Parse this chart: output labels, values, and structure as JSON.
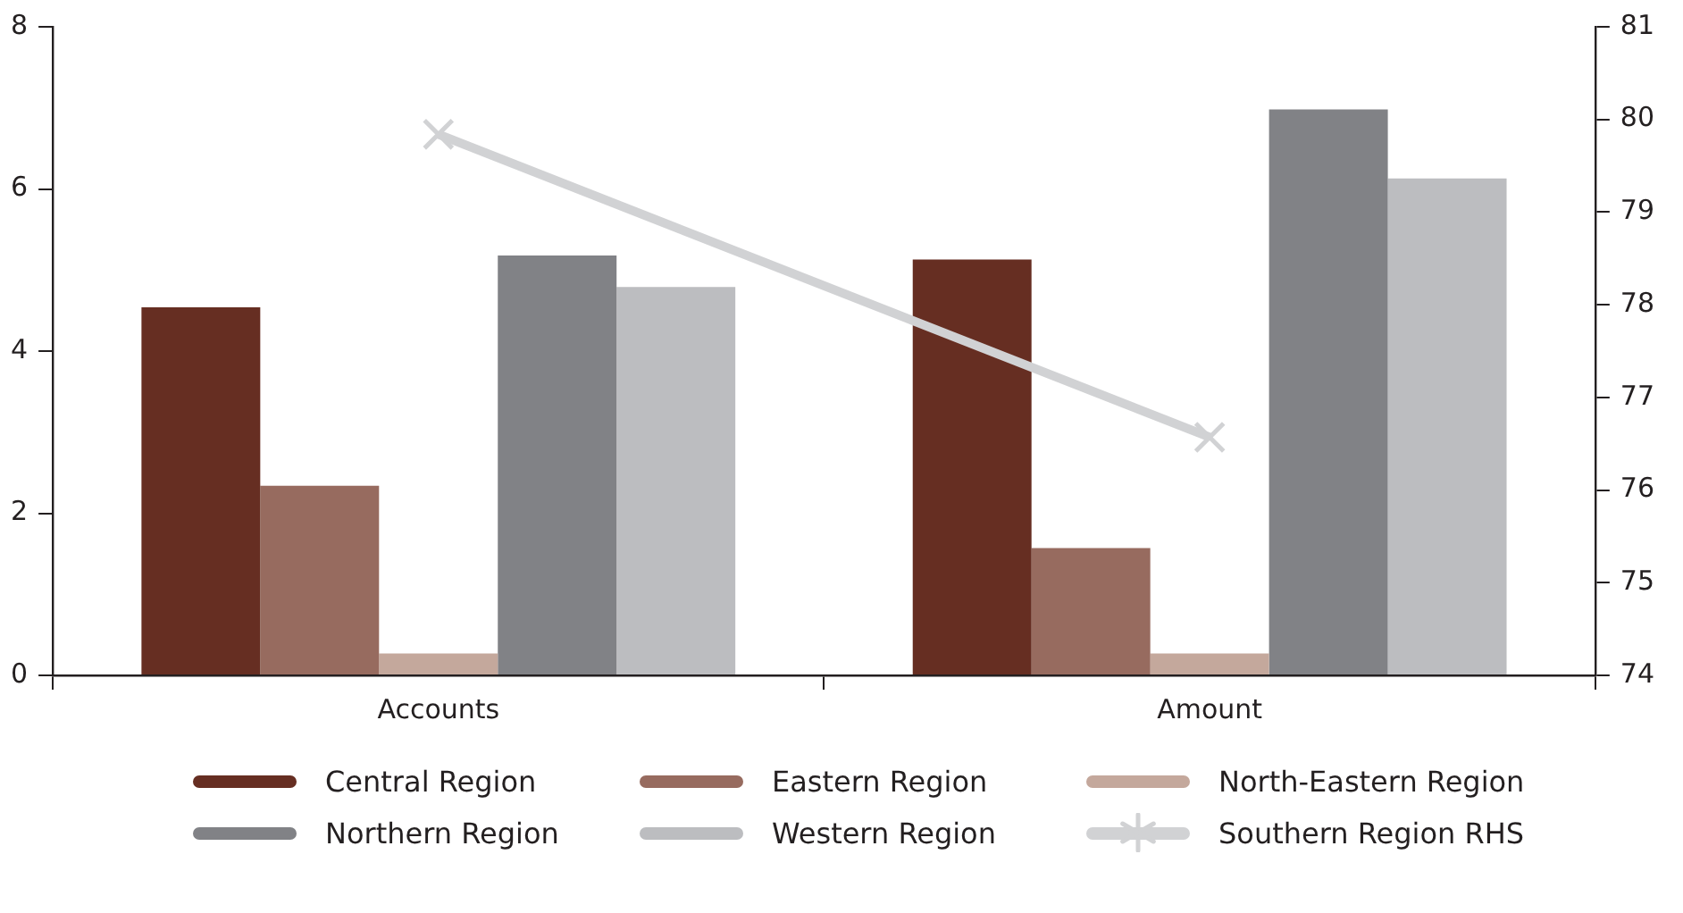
{
  "chart_data": {
    "type": "bar",
    "categories": [
      "Accounts",
      "Amount"
    ],
    "series": [
      {
        "name": "Central Region",
        "color": "#662e22",
        "values": [
          4.54,
          5.13
        ]
      },
      {
        "name": "Eastern Region",
        "color": "#976b5f",
        "values": [
          2.34,
          1.57
        ]
      },
      {
        "name": "North-Eastern Region",
        "color": "#c4a89c",
        "values": [
          0.27,
          0.27
        ]
      },
      {
        "name": "Northern Region",
        "color": "#818286",
        "values": [
          5.18,
          6.98
        ]
      },
      {
        "name": "Western Region",
        "color": "#bcbdc0",
        "values": [
          4.79,
          6.13
        ]
      },
      {
        "name": "Southern Region RHS",
        "type": "line",
        "axis": "y2",
        "color": "#d1d2d4",
        "marker": "cross",
        "values": [
          79.84,
          76.57
        ]
      }
    ],
    "ylim": [
      0,
      8
    ],
    "yticks": [
      0,
      2,
      4,
      6,
      8
    ],
    "y2lim": [
      74,
      81
    ],
    "y2ticks": [
      74,
      75,
      76,
      77,
      78,
      79,
      80,
      81
    ],
    "grid": false,
    "legend": "bottom"
  }
}
